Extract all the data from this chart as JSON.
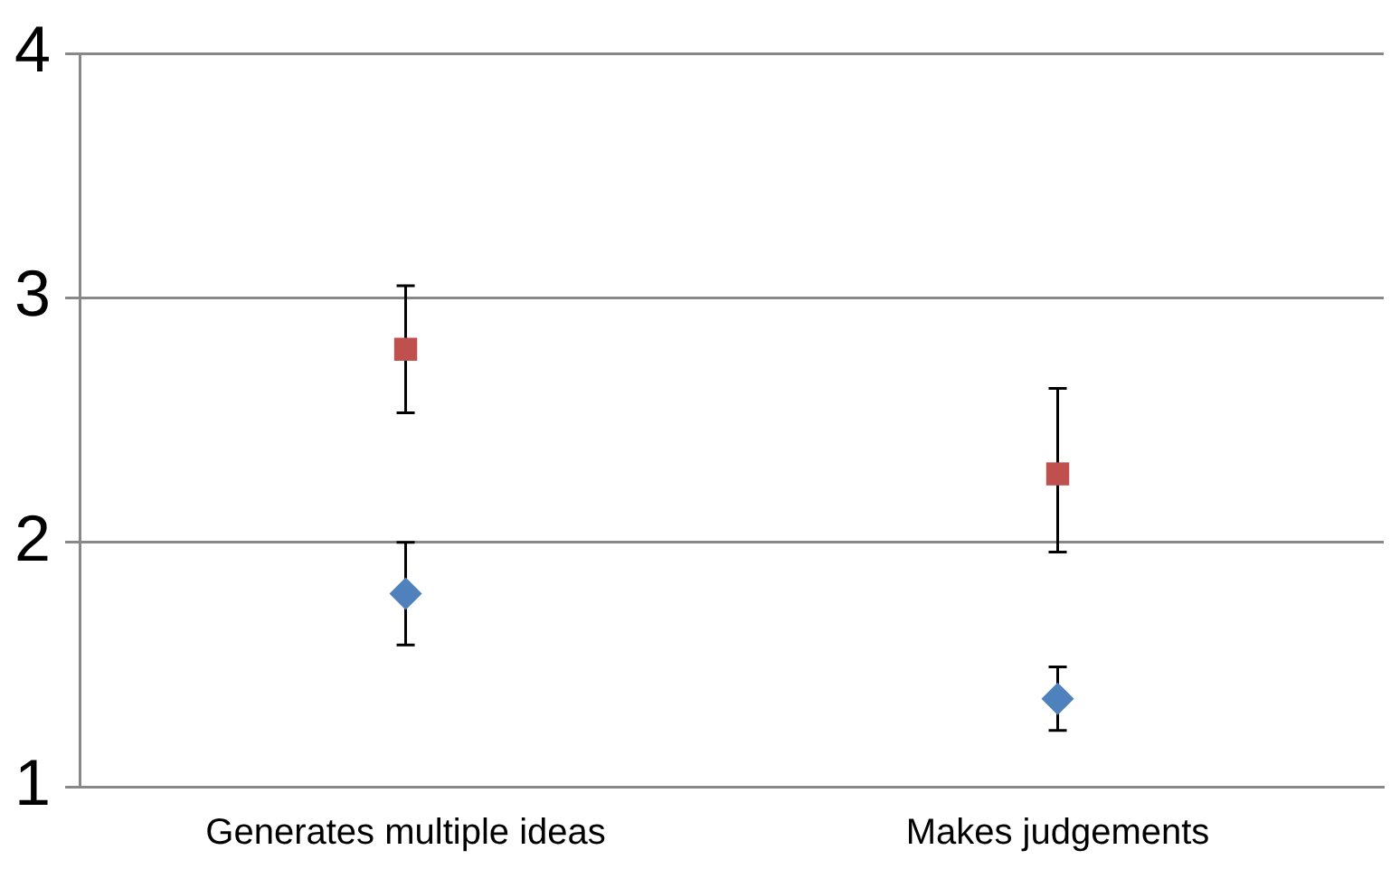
{
  "chart_data": {
    "type": "scatter",
    "categories": [
      "Generates multiple ideas",
      "Makes judgements"
    ],
    "series": [
      {
        "color": "#4f81bd",
        "marker": "diamond",
        "values": [
          1.79,
          1.36
        ],
        "errors": [
          [
            1.58,
            2.0
          ],
          [
            1.23,
            1.49
          ]
        ]
      },
      {
        "color": "#c0504d",
        "marker": "square",
        "values": [
          2.79,
          2.28
        ],
        "errors": [
          [
            2.53,
            3.05
          ],
          [
            1.96,
            2.63
          ]
        ]
      }
    ],
    "ylim": [
      1,
      4
    ],
    "yticks": [
      1,
      2,
      3,
      4
    ],
    "grid": "y",
    "legend": false
  }
}
